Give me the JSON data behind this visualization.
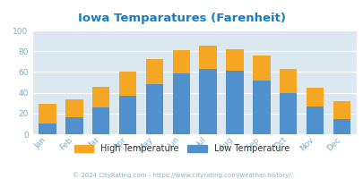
{
  "title": "Iowa Temparatures (Farenheit)",
  "months": [
    "Jan",
    "Feb",
    "Mar",
    "Apr",
    "May",
    "Jun",
    "Jul",
    "Aug",
    "Sep",
    "Oct",
    "Nov",
    "Dec"
  ],
  "low_temps": [
    10,
    16,
    26,
    37,
    48,
    59,
    63,
    61,
    52,
    40,
    27,
    15
  ],
  "high_temps": [
    29,
    34,
    46,
    60,
    72,
    81,
    85,
    82,
    76,
    63,
    45,
    32
  ],
  "low_color": "#4f90cd",
  "high_color": "#f5a623",
  "title_color": "#1a7bbf",
  "plot_bg": "#dce8ef",
  "ylabel_max": 100,
  "yticks": [
    0,
    20,
    40,
    60,
    80,
    100
  ],
  "legend_low": "Low Temperature",
  "legend_high": "High Temperature",
  "footer": "© 2024 CityRating.com - https://www.cityrating.com/weather-history/",
  "footer_color": "#8aafc5",
  "grid_color": "#ffffff",
  "tick_color": "#7aafc5",
  "legend_text_color": "#333333"
}
